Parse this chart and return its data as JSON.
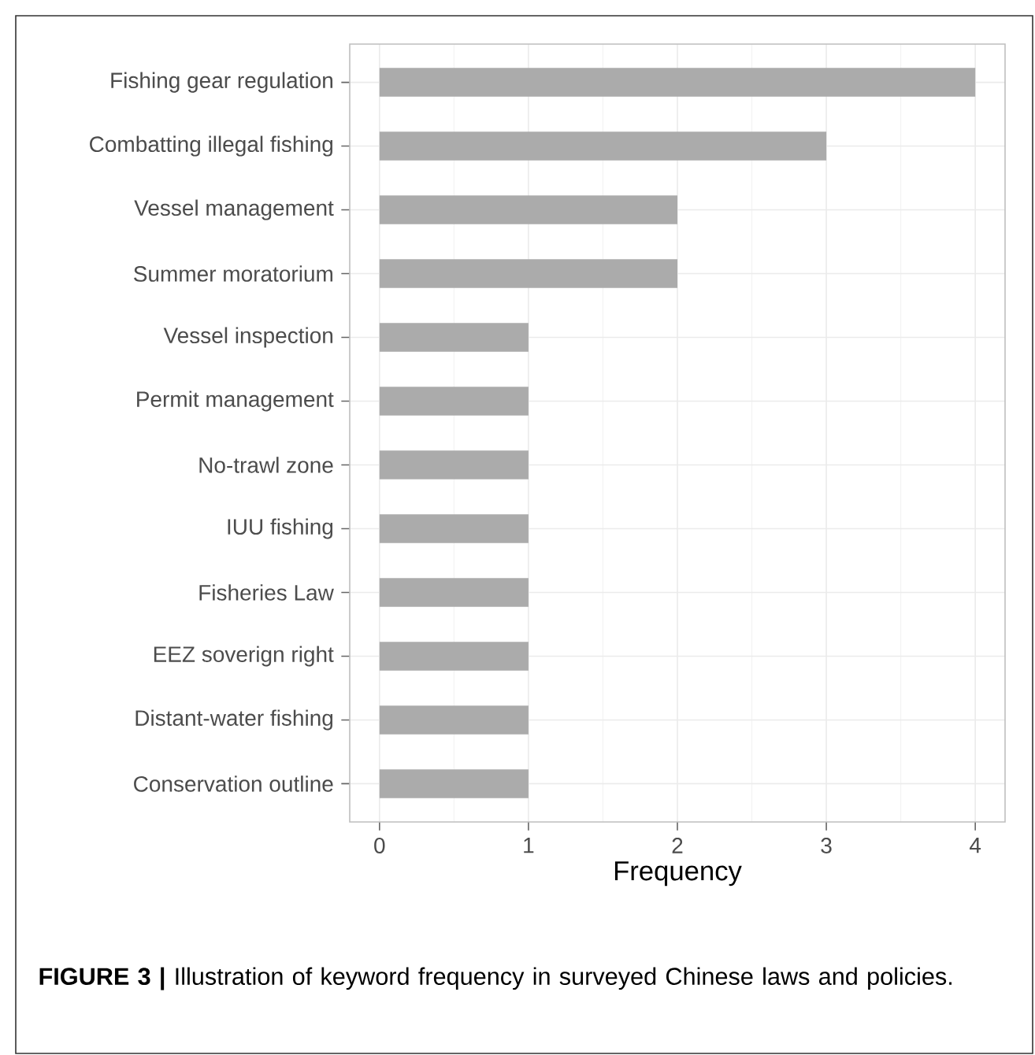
{
  "chart_data": {
    "type": "bar",
    "orientation": "horizontal",
    "xlabel": "Frequency",
    "categories": [
      "Fishing gear regulation",
      "Combatting illegal fishing",
      "Vessel management",
      "Summer moratorium",
      "Vessel inspection",
      "Permit management",
      "No-trawl zone",
      "IUU fishing",
      "Fisheries Law",
      "EEZ soverign right",
      "Distant-water fishing",
      "Conservation outline"
    ],
    "values": [
      4,
      3,
      2,
      2,
      1,
      1,
      1,
      1,
      1,
      1,
      1,
      1
    ],
    "color": "#ababab",
    "xlim": [
      -0.2,
      4.2
    ],
    "xticks": [
      0,
      1,
      2,
      3,
      4
    ],
    "grid": true,
    "annotations": [
      "**FIGURE 3 |** Illustration of keyword frequency in surveyed Chinese laws and policies."
    ]
  }
}
